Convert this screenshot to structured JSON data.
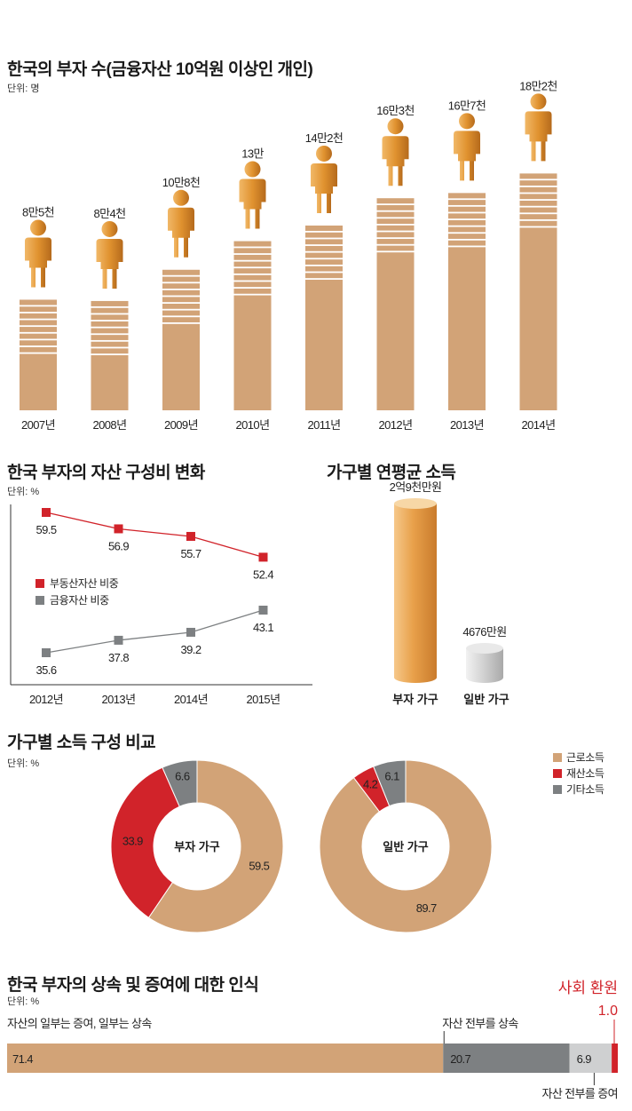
{
  "colors": {
    "tan": "#d2a377",
    "red": "#d1232a",
    "gray": "#7d8082",
    "lightgray": "#cfd0d1",
    "figure": "#e2963a"
  },
  "chart_data": [
    {
      "type": "bar",
      "id": "rich_count",
      "title": "한국의 부자 수(금융자산 10억원 이상인 개인)",
      "unit": "단위: 명",
      "categories": [
        "2007년",
        "2008년",
        "2009년",
        "2010년",
        "2011년",
        "2012년",
        "2013년",
        "2014년"
      ],
      "values": [
        85000,
        84000,
        108000,
        130000,
        142000,
        163000,
        167000,
        182000
      ],
      "data_labels": [
        "8만5천",
        "8만4천",
        "10만8천",
        "13만",
        "14만2천",
        "16만3천",
        "16만7천",
        "18만2천"
      ]
    },
    {
      "type": "line",
      "id": "asset_composition",
      "title": "한국 부자의 자산 구성비 변화",
      "unit": "단위: %",
      "categories": [
        "2012년",
        "2013년",
        "2014년",
        "2015년"
      ],
      "series": [
        {
          "name": "부동산자산 비중",
          "values": [
            59.5,
            56.9,
            55.7,
            52.4
          ],
          "labels": [
            "59.5",
            "56.9",
            "55.7",
            "52.4"
          ]
        },
        {
          "name": "금융자산 비중",
          "values": [
            35.6,
            37.8,
            39.2,
            43.1
          ],
          "labels": [
            "35.6",
            "37.8",
            "39.2",
            "43.1"
          ]
        }
      ],
      "legend": "center-left"
    },
    {
      "type": "bar",
      "id": "household_income",
      "title": "가구별 연평균 소득",
      "categories": [
        "부자 가구",
        "일반 가구"
      ],
      "values": [
        29000,
        4676
      ],
      "data_labels": [
        "2억9천만원",
        "4676만원"
      ]
    },
    {
      "type": "pie",
      "id": "income_composition",
      "title": "가구별 소득 구성 비교",
      "unit": "단위: %",
      "legend_items": [
        "근로소득",
        "재산소득",
        "기타소득"
      ],
      "legend": "top-right",
      "donuts": [
        {
          "center_label": "부자 가구",
          "values": [
            59.5,
            33.9,
            6.6
          ],
          "labels": [
            "59.5",
            "33.9",
            "6.6"
          ]
        },
        {
          "center_label": "일반 가구",
          "values": [
            89.7,
            4.2,
            6.1
          ],
          "labels": [
            "89.7",
            "4.2",
            "6.1"
          ]
        }
      ]
    },
    {
      "type": "bar",
      "id": "inheritance",
      "title": "한국 부자의 상속 및 증여에 대한 인식",
      "unit": "단위: %",
      "segments": [
        {
          "name": "자산의 일부는 증여, 일부는 상속",
          "value": 71.4,
          "label": "71.4"
        },
        {
          "name": "자산 전부를 상속",
          "value": 20.7,
          "label": "20.7"
        },
        {
          "name": "자산 전부를 증여",
          "value": 6.9,
          "label": "6.9"
        },
        {
          "name": "사회 환원",
          "value": 1.0,
          "label": "1.0"
        }
      ]
    }
  ]
}
